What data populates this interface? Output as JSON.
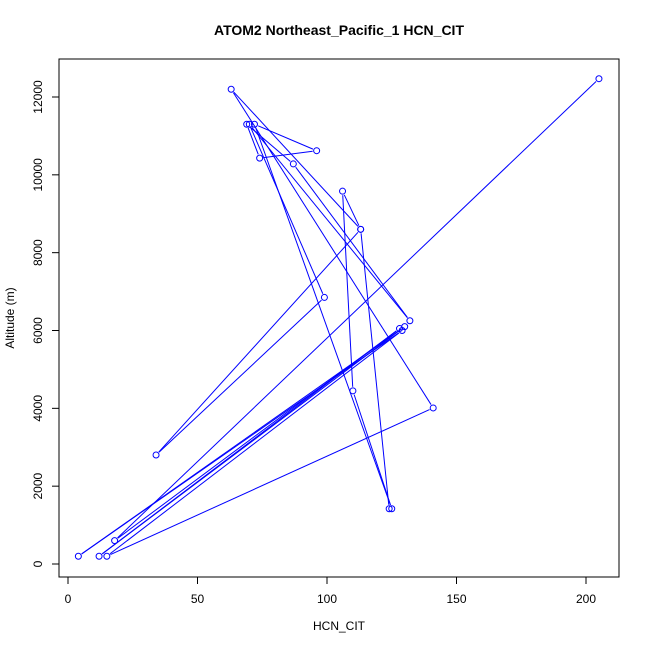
{
  "chart_data": {
    "type": "scatter",
    "title": "ATOM2 Northeast_Pacific_1 HCN_CIT",
    "xlabel": "HCN_CIT",
    "ylabel": "Altitude (m)",
    "xlim": [
      0,
      205
    ],
    "ylim": [
      0,
      12500
    ],
    "x_ticks": [
      0,
      50,
      100,
      150,
      200
    ],
    "y_ticks": [
      0,
      2000,
      4000,
      6000,
      8000,
      10000,
      12000
    ],
    "connected": true,
    "marker": "open-circle",
    "color": "#0000ff",
    "series": [
      {
        "x": [
          205,
          18,
          128,
          12,
          130,
          4,
          129,
          15,
          141,
          63,
          113,
          106,
          110,
          125,
          72,
          96,
          74,
          69,
          87,
          132,
          70,
          99,
          34,
          113,
          124
        ],
        "y": [
          12470,
          600,
          6050,
          200,
          6100,
          200,
          6000,
          200,
          4010,
          12200,
          8600,
          9580,
          4450,
          1420,
          11300,
          10620,
          10430,
          11300,
          10280,
          6250,
          11300,
          6850,
          2800,
          8600,
          1420
        ]
      }
    ]
  }
}
